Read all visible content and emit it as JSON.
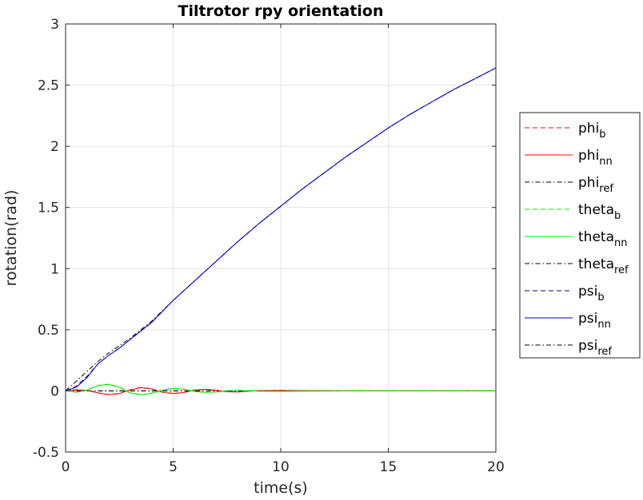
{
  "chart_data": {
    "type": "line",
    "title": "Tiltrotor rpy orientation",
    "xlabel": "time(s)",
    "ylabel": "rotation(rad)",
    "xlim": [
      0,
      20
    ],
    "ylim": [
      -0.5,
      3
    ],
    "xticks": [
      "0",
      "5",
      "10",
      "15",
      "20"
    ],
    "yticks": [
      "-0.5",
      "0",
      "0.5",
      "1",
      "1.5",
      "2",
      "2.5",
      "3"
    ],
    "grid": true,
    "legend_position": "outside-right",
    "series": [
      {
        "name": "phi",
        "sub": "b",
        "color": "#ff0000",
        "dash": "dashed",
        "x": [
          0,
          0.5,
          1,
          1.5,
          2,
          2.5,
          3,
          3.5,
          4,
          4.5,
          5,
          5.5,
          6,
          6.5,
          7,
          7.5,
          8,
          8.5,
          9,
          10,
          11,
          12,
          14,
          16,
          18,
          20
        ],
        "y": [
          0,
          0.01,
          0.005,
          -0.015,
          -0.03,
          -0.02,
          0.01,
          0.028,
          0.018,
          -0.01,
          -0.02,
          -0.012,
          0.008,
          0.014,
          0.006,
          -0.006,
          -0.008,
          -0.002,
          0.003,
          0.004,
          0.002,
          0.001,
          0,
          0,
          0,
          0
        ]
      },
      {
        "name": "phi",
        "sub": "nn",
        "color": "#ff0000",
        "dash": "solid",
        "x": [
          0,
          0.5,
          1,
          1.5,
          2,
          2.5,
          3,
          3.5,
          4,
          4.5,
          5,
          5.5,
          6,
          6.5,
          7,
          7.5,
          8,
          8.5,
          9,
          10,
          11,
          12,
          14,
          16,
          18,
          20
        ],
        "y": [
          0,
          0.008,
          0.004,
          -0.016,
          -0.032,
          -0.022,
          0.008,
          0.026,
          0.016,
          -0.011,
          -0.022,
          -0.013,
          0.007,
          0.013,
          0.005,
          -0.007,
          -0.009,
          -0.003,
          0.002,
          0.004,
          0.002,
          0.001,
          0,
          0,
          0,
          0
        ]
      },
      {
        "name": "phi",
        "sub": "ref",
        "color": "#000000",
        "dash": "dashdot",
        "x": [
          0,
          20
        ],
        "y": [
          0,
          0
        ]
      },
      {
        "name": "theta",
        "sub": "b",
        "color": "#00ee00",
        "dash": "dashed",
        "x": [
          0,
          0.5,
          1,
          1.5,
          2,
          2.5,
          3,
          3.5,
          4,
          4.5,
          5,
          5.5,
          6,
          6.5,
          7,
          7.5,
          8,
          8.5,
          9,
          10,
          11,
          12,
          14,
          16,
          18,
          20
        ],
        "y": [
          0,
          -0.01,
          0.01,
          0.045,
          0.055,
          0.03,
          -0.015,
          -0.03,
          -0.018,
          0.008,
          0.022,
          0.015,
          -0.004,
          -0.012,
          -0.008,
          0.002,
          0.005,
          0.002,
          -0.002,
          -0.003,
          -0.002,
          -0.001,
          0,
          0,
          0,
          0
        ]
      },
      {
        "name": "theta",
        "sub": "nn",
        "color": "#00ee00",
        "dash": "solid",
        "x": [
          0,
          0.5,
          1,
          1.5,
          2,
          2.5,
          3,
          3.5,
          4,
          4.5,
          5,
          5.5,
          6,
          6.5,
          7,
          7.5,
          8,
          8.5,
          9,
          10,
          11,
          12,
          14,
          16,
          18,
          20
        ],
        "y": [
          0,
          -0.012,
          0.008,
          0.043,
          0.053,
          0.028,
          -0.017,
          -0.032,
          -0.02,
          0.006,
          0.02,
          0.013,
          -0.005,
          -0.013,
          -0.009,
          0.001,
          0.004,
          0.001,
          -0.003,
          -0.004,
          -0.002,
          -0.001,
          0,
          0,
          0,
          0
        ]
      },
      {
        "name": "theta",
        "sub": "ref",
        "color": "#000000",
        "dash": "dashdot",
        "x": [
          0,
          20
        ],
        "y": [
          0,
          0
        ]
      },
      {
        "name": "psi",
        "sub": "b",
        "color": "#000080",
        "dash": "dashed",
        "x": [
          0,
          0.5,
          1,
          1.5,
          2,
          2.5,
          3,
          4,
          5,
          6,
          7,
          8,
          9,
          10,
          11,
          12,
          13,
          14,
          15,
          16,
          17,
          18,
          19,
          20
        ],
        "y": [
          0,
          0.04,
          0.12,
          0.22,
          0.29,
          0.35,
          0.42,
          0.56,
          0.74,
          0.9,
          1.06,
          1.22,
          1.37,
          1.51,
          1.65,
          1.78,
          1.91,
          2.03,
          2.15,
          2.26,
          2.36,
          2.46,
          2.55,
          2.64
        ]
      },
      {
        "name": "psi",
        "sub": "nn",
        "color": "#0000cc",
        "dash": "solid",
        "x": [
          0,
          0.5,
          1,
          1.5,
          2,
          2.5,
          3,
          4,
          5,
          6,
          7,
          8,
          9,
          10,
          11,
          12,
          13,
          14,
          15,
          16,
          17,
          18,
          19,
          20
        ],
        "y": [
          0,
          0.03,
          0.11,
          0.22,
          0.29,
          0.35,
          0.42,
          0.56,
          0.74,
          0.9,
          1.06,
          1.22,
          1.37,
          1.51,
          1.65,
          1.78,
          1.91,
          2.03,
          2.15,
          2.26,
          2.36,
          2.46,
          2.55,
          2.64
        ]
      },
      {
        "name": "psi",
        "sub": "ref",
        "color": "#000000",
        "dash": "dashdot",
        "x": [
          0,
          0.5,
          1,
          1.5,
          2,
          2.5,
          3,
          4,
          5,
          6,
          7,
          8,
          9,
          10,
          11,
          12,
          13,
          14,
          15,
          16,
          17,
          18,
          19,
          20
        ],
        "y": [
          0,
          0.08,
          0.16,
          0.24,
          0.31,
          0.37,
          0.43,
          0.57,
          0.74,
          0.9,
          1.06,
          1.22,
          1.37,
          1.51,
          1.65,
          1.78,
          1.91,
          2.03,
          2.15,
          2.26,
          2.36,
          2.46,
          2.55,
          2.64
        ]
      }
    ]
  }
}
